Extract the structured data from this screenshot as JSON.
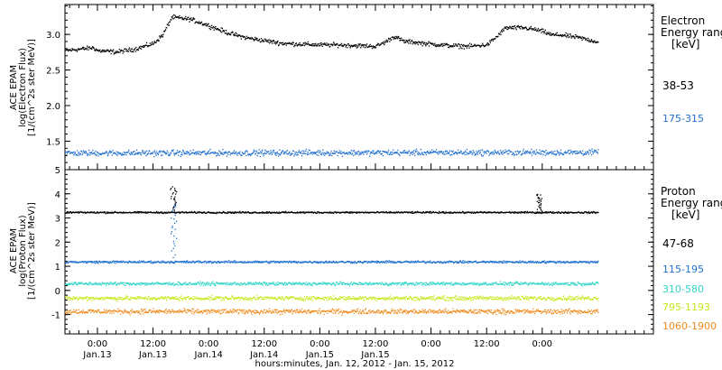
{
  "chart_data": [
    {
      "type": "scatter",
      "panel": "electron",
      "ylabel_lines": [
        "ACE EPAM",
        "log(Electron Flux)",
        "[1/(cm^2s ster MeV)]"
      ],
      "legend_title_lines": [
        "Electron",
        "Energy range",
        "[keV]"
      ],
      "ylim": [
        1.1,
        3.42
      ],
      "yticks": [
        1.5,
        2.0,
        2.5,
        3.0
      ],
      "ytick_labels": [
        "1.5",
        "2.0",
        "2.5",
        "3.0"
      ],
      "series": [
        {
          "name": "38-53",
          "color": "#000000",
          "x": [
            -7,
            -4,
            -1,
            0,
            4,
            8,
            12,
            14,
            16,
            20,
            24,
            28,
            32,
            36,
            40,
            44,
            48,
            52,
            56,
            60,
            62,
            64,
            66,
            68,
            72,
            76,
            80,
            84,
            86,
            88,
            92,
            94,
            96,
            98,
            100,
            102,
            104,
            106,
            108
          ],
          "y": [
            2.78,
            2.8,
            2.82,
            2.78,
            2.76,
            2.8,
            2.88,
            3.0,
            3.25,
            3.22,
            3.13,
            3.03,
            2.96,
            2.92,
            2.88,
            2.87,
            2.86,
            2.86,
            2.85,
            2.84,
            2.9,
            2.98,
            2.91,
            2.9,
            2.87,
            2.85,
            2.84,
            2.86,
            2.97,
            3.1,
            3.1,
            3.08,
            3.05,
            3.0,
            3.0,
            2.98,
            2.96,
            2.93,
            2.9
          ]
        },
        {
          "name": "175-315",
          "color": "#1f6fcf",
          "x": [
            -7,
            108
          ],
          "y": [
            1.34,
            1.35
          ]
        }
      ]
    },
    {
      "type": "scatter",
      "panel": "proton",
      "ylabel_lines": [
        "ACE EPAM",
        "log(Proton Flux)",
        "[1/(cm^2s ster MeV)]"
      ],
      "legend_title_lines": [
        "Proton",
        "Energy range",
        "[keV]"
      ],
      "ylim": [
        -1.8,
        5
      ],
      "yticks": [
        -1,
        0,
        1,
        2,
        3,
        4,
        5
      ],
      "ytick_labels": [
        "-1",
        "0",
        "1",
        "2",
        "3",
        "4",
        "5"
      ],
      "series": [
        {
          "name": "47-68",
          "color": "#000000",
          "x": [
            -7,
            108
          ],
          "y": [
            3.25,
            3.25
          ]
        },
        {
          "name": "115-195",
          "color": "#1f6fcf",
          "x": [
            -7,
            108
          ],
          "y": [
            1.2,
            1.2
          ]
        },
        {
          "name": "310-580",
          "color": "#33d6c6",
          "x": [
            -7,
            108
          ],
          "y": [
            0.3,
            0.3
          ]
        },
        {
          "name": "795-1193",
          "color": "#c9e61e",
          "x": [
            -7,
            108
          ],
          "y": [
            -0.3,
            -0.3
          ]
        },
        {
          "name": "1060-1900",
          "color": "#f08a1c",
          "x": [
            -7,
            108
          ],
          "y": [
            -0.85,
            -0.85
          ]
        }
      ],
      "spikes": [
        {
          "series": "47-68",
          "x": 16,
          "peak": 4.3
        },
        {
          "series": "115-195",
          "x": 16,
          "peak": 3.6
        },
        {
          "series": "47-68",
          "x": 95,
          "peak": 4.0
        }
      ]
    }
  ],
  "xaxis": {
    "xlim": [
      -7,
      120
    ],
    "major_ticks": [
      0,
      12,
      24,
      36,
      48,
      60,
      72,
      84,
      96
    ],
    "tick_time_labels": [
      "0:00",
      "12:00",
      "0:00",
      "12:00",
      "0:00",
      "12:00",
      "0:00",
      "12:00",
      "0:00"
    ],
    "tick_date_labels": [
      "Jan.13",
      "Jan.13",
      "Jan.14",
      "Jan.14",
      "Jan.15",
      "Jan.15",
      "",
      "",
      ""
    ],
    "label": "hours:minutes, Jan. 12, 2012 - Jan. 15, 2012"
  }
}
